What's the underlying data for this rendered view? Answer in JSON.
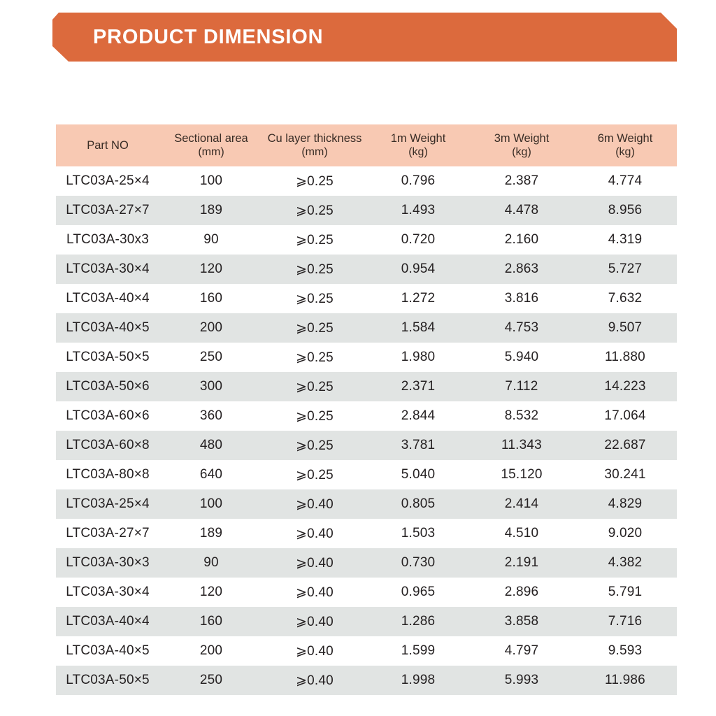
{
  "banner": {
    "title": "PRODUCT DIMENSION",
    "color": "#DC6A3D"
  },
  "colors": {
    "header_bg": "#F8C9B3",
    "row_alt_bg": "#E1E4E3",
    "row_bg": "#FFFFFF",
    "text": "#252122"
  },
  "table": {
    "columns": [
      {
        "label": "Part NO",
        "unit": ""
      },
      {
        "label": "Sectional area",
        "unit": "(mm)"
      },
      {
        "label": "Cu layer thickness",
        "unit": "(mm)"
      },
      {
        "label": "1m Weight",
        "unit": "(kg)"
      },
      {
        "label": "3m Weight",
        "unit": "(kg)"
      },
      {
        "label": "6m Weight",
        "unit": "(kg)"
      }
    ],
    "rows": [
      [
        "LTC03A-25×4",
        "100",
        "⩾0.25",
        "0.796",
        "2.387",
        "4.774"
      ],
      [
        "LTC03A-27×7",
        "189",
        "⩾0.25",
        "1.493",
        "4.478",
        "8.956"
      ],
      [
        "LTC03A-30x3",
        "90",
        "⩾0.25",
        "0.720",
        "2.160",
        "4.319"
      ],
      [
        "LTC03A-30×4",
        "120",
        "⩾0.25",
        "0.954",
        "2.863",
        "5.727"
      ],
      [
        "LTC03A-40×4",
        "160",
        "⩾0.25",
        "1.272",
        "3.816",
        "7.632"
      ],
      [
        "LTC03A-40×5",
        "200",
        "⩾0.25",
        "1.584",
        "4.753",
        "9.507"
      ],
      [
        "LTC03A-50×5",
        "250",
        "⩾0.25",
        "1.980",
        "5.940",
        "11.880"
      ],
      [
        "LTC03A-50×6",
        "300",
        "⩾0.25",
        "2.371",
        "7.112",
        "14.223"
      ],
      [
        "LTC03A-60×6",
        "360",
        "⩾0.25",
        "2.844",
        "8.532",
        "17.064"
      ],
      [
        "LTC03A-60×8",
        "480",
        "⩾0.25",
        "3.781",
        "11.343",
        "22.687"
      ],
      [
        "LTC03A-80×8",
        "640",
        "⩾0.25",
        "5.040",
        "15.120",
        "30.241"
      ],
      [
        "LTC03A-25×4",
        "100",
        "⩾0.40",
        "0.805",
        "2.414",
        "4.829"
      ],
      [
        "LTC03A-27×7",
        "189",
        "⩾0.40",
        "1.503",
        "4.510",
        "9.020"
      ],
      [
        "LTC03A-30×3",
        "90",
        "⩾0.40",
        "0.730",
        "2.191",
        "4.382"
      ],
      [
        "LTC03A-30×4",
        "120",
        "⩾0.40",
        "0.965",
        "2.896",
        "5.791"
      ],
      [
        "LTC03A-40×4",
        "160",
        "⩾0.40",
        "1.286",
        "3.858",
        "7.716"
      ],
      [
        "LTC03A-40×5",
        "200",
        "⩾0.40",
        "1.599",
        "4.797",
        "9.593"
      ],
      [
        "LTC03A-50×5",
        "250",
        "⩾0.40",
        "1.998",
        "5.993",
        "11.986"
      ]
    ]
  }
}
